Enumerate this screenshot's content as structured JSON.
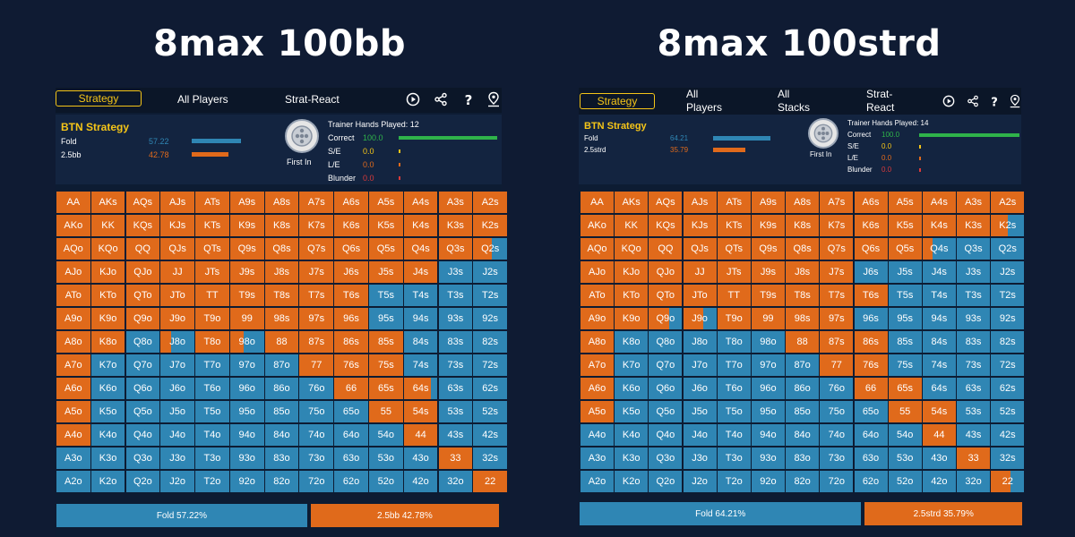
{
  "titles": [
    "8max 100bb",
    "8max 100strd"
  ],
  "colors": {
    "raise": "#e06a1b",
    "fold": "#2f86b4",
    "accent": "#f5c518",
    "correct": "#2fb34a"
  },
  "hands": [
    [
      "AA",
      "AKs",
      "AQs",
      "AJs",
      "ATs",
      "A9s",
      "A8s",
      "A7s",
      "A6s",
      "A5s",
      "A4s",
      "A3s",
      "A2s"
    ],
    [
      "AKo",
      "KK",
      "KQs",
      "KJs",
      "KTs",
      "K9s",
      "K8s",
      "K7s",
      "K6s",
      "K5s",
      "K4s",
      "K3s",
      "K2s"
    ],
    [
      "AQo",
      "KQo",
      "QQ",
      "QJs",
      "QTs",
      "Q9s",
      "Q8s",
      "Q7s",
      "Q6s",
      "Q5s",
      "Q4s",
      "Q3s",
      "Q2s"
    ],
    [
      "AJo",
      "KJo",
      "QJo",
      "JJ",
      "JTs",
      "J9s",
      "J8s",
      "J7s",
      "J6s",
      "J5s",
      "J4s",
      "J3s",
      "J2s"
    ],
    [
      "ATo",
      "KTo",
      "QTo",
      "JTo",
      "TT",
      "T9s",
      "T8s",
      "T7s",
      "T6s",
      "T5s",
      "T4s",
      "T3s",
      "T2s"
    ],
    [
      "A9o",
      "K9o",
      "Q9o",
      "J9o",
      "T9o",
      "99",
      "98s",
      "97s",
      "96s",
      "95s",
      "94s",
      "93s",
      "92s"
    ],
    [
      "A8o",
      "K8o",
      "Q8o",
      "J8o",
      "T8o",
      "98o",
      "88",
      "87s",
      "86s",
      "85s",
      "84s",
      "83s",
      "82s"
    ],
    [
      "A7o",
      "K7o",
      "Q7o",
      "J7o",
      "T7o",
      "97o",
      "87o",
      "77",
      "76s",
      "75s",
      "74s",
      "73s",
      "72s"
    ],
    [
      "A6o",
      "K6o",
      "Q6o",
      "J6o",
      "T6o",
      "96o",
      "86o",
      "76o",
      "66",
      "65s",
      "64s",
      "63s",
      "62s"
    ],
    [
      "A5o",
      "K5o",
      "Q5o",
      "J5o",
      "T5o",
      "95o",
      "85o",
      "75o",
      "65o",
      "55",
      "54s",
      "53s",
      "52s"
    ],
    [
      "A4o",
      "K4o",
      "Q4o",
      "J4o",
      "T4o",
      "94o",
      "84o",
      "74o",
      "64o",
      "54o",
      "44",
      "43s",
      "42s"
    ],
    [
      "A3o",
      "K3o",
      "Q3o",
      "J3o",
      "T3o",
      "93o",
      "83o",
      "73o",
      "63o",
      "53o",
      "43o",
      "33",
      "32s"
    ],
    [
      "A2o",
      "K2o",
      "Q2o",
      "J2o",
      "T2o",
      "92o",
      "82o",
      "72o",
      "62o",
      "52o",
      "42o",
      "32o",
      "22"
    ]
  ],
  "panels": [
    {
      "tabs": {
        "strategy": "Strategy",
        "tab2": "All Players",
        "tab3": "Strat-React"
      },
      "position_title": "BTN Strategy",
      "actions": [
        {
          "label": "Fold",
          "value": "57.22",
          "freq": 57.22
        },
        {
          "label": "2.5bb",
          "value": "42.78",
          "freq": 42.78
        }
      ],
      "first_in": "First In",
      "trainer": {
        "title": "Trainer Hands Played: 12",
        "rows": [
          {
            "label": "Correct",
            "value": "100.0"
          },
          {
            "label": "S/E",
            "value": "0.0"
          },
          {
            "label": "L/E",
            "value": "0.0"
          },
          {
            "label": "Blunder",
            "value": "0.0"
          }
        ]
      },
      "raise_fraction": [
        [
          1,
          1,
          1,
          1,
          1,
          1,
          1,
          1,
          1,
          1,
          1,
          1,
          1
        ],
        [
          1,
          1,
          1,
          1,
          1,
          1,
          1,
          1,
          1,
          1,
          1,
          1,
          1
        ],
        [
          1,
          1,
          1,
          1,
          1,
          1,
          1,
          1,
          1,
          1,
          1,
          1,
          0.55
        ],
        [
          1,
          1,
          1,
          1,
          1,
          1,
          1,
          1,
          1,
          1,
          1,
          0,
          0
        ],
        [
          1,
          1,
          1,
          1,
          1,
          1,
          1,
          1,
          1,
          0,
          0,
          0,
          0
        ],
        [
          1,
          1,
          1,
          1,
          1,
          1,
          1,
          1,
          1,
          0,
          0,
          0,
          0
        ],
        [
          1,
          1,
          0,
          0.3,
          1,
          0.4,
          1,
          1,
          1,
          1,
          0,
          0,
          0
        ],
        [
          1,
          0,
          0,
          0,
          0,
          0,
          0,
          1,
          1,
          1,
          0,
          0,
          0
        ],
        [
          1,
          0,
          0,
          0,
          0,
          0,
          0,
          0,
          1,
          1,
          0.8,
          0,
          0
        ],
        [
          1,
          0,
          0,
          0,
          0,
          0,
          0,
          0,
          0,
          1,
          1,
          0,
          0
        ],
        [
          1,
          0,
          0,
          0,
          0,
          0,
          0,
          0,
          0,
          0,
          1,
          0,
          0
        ],
        [
          0,
          0,
          0,
          0,
          0,
          0,
          0,
          0,
          0,
          0,
          0,
          1,
          0
        ],
        [
          0,
          0,
          0,
          0,
          0,
          0,
          0,
          0,
          0,
          0,
          0,
          0,
          1
        ]
      ],
      "summary": {
        "fold": "Fold 57.22%",
        "raise": "2.5bb 42.78%",
        "fold_freq": 57.22
      }
    },
    {
      "tabs": {
        "strategy": "Strategy",
        "tab2": "All Players",
        "tab3": "All Stacks",
        "tab4": "Strat-React"
      },
      "position_title": "BTN Strategy",
      "actions": [
        {
          "label": "Fold",
          "value": "64.21",
          "freq": 64.21
        },
        {
          "label": "2.5strd",
          "value": "35.79",
          "freq": 35.79
        }
      ],
      "first_in": "First In",
      "trainer": {
        "title": "Trainer Hands Played: 14",
        "rows": [
          {
            "label": "Correct",
            "value": "100.0"
          },
          {
            "label": "S/E",
            "value": "0.0"
          },
          {
            "label": "L/E",
            "value": "0.0"
          },
          {
            "label": "Blunder",
            "value": "0.0"
          }
        ]
      },
      "raise_fraction": [
        [
          1,
          1,
          1,
          1,
          1,
          1,
          1,
          1,
          1,
          1,
          1,
          1,
          1
        ],
        [
          1,
          1,
          1,
          1,
          1,
          1,
          1,
          1,
          1,
          1,
          1,
          1,
          0.5
        ],
        [
          1,
          1,
          1,
          1,
          1,
          1,
          1,
          1,
          1,
          1,
          0.3,
          0,
          0
        ],
        [
          1,
          1,
          1,
          1,
          1,
          1,
          1,
          1,
          0,
          0,
          0,
          0,
          0
        ],
        [
          1,
          1,
          1,
          1,
          1,
          1,
          1,
          1,
          1,
          0,
          0,
          0,
          0
        ],
        [
          1,
          1,
          0.6,
          0.6,
          1,
          1,
          1,
          1,
          0,
          0,
          0,
          0,
          0
        ],
        [
          1,
          0,
          0,
          0,
          0,
          0,
          1,
          1,
          1,
          0,
          0,
          0,
          0
        ],
        [
          1,
          0,
          0,
          0,
          0,
          0,
          0,
          1,
          1,
          0,
          0,
          0,
          0
        ],
        [
          1,
          0,
          0,
          0,
          0,
          0,
          0,
          0,
          1,
          1,
          0,
          0,
          0
        ],
        [
          1,
          0,
          0,
          0,
          0,
          0,
          0,
          0,
          0,
          1,
          1,
          0,
          0
        ],
        [
          0,
          0,
          0,
          0,
          0,
          0,
          0,
          0,
          0,
          0,
          1,
          0,
          0
        ],
        [
          0,
          0,
          0,
          0,
          0,
          0,
          0,
          0,
          0,
          0,
          0,
          1,
          0
        ],
        [
          0,
          0,
          0,
          0,
          0,
          0,
          0,
          0,
          0,
          0,
          0,
          0,
          0.6
        ]
      ],
      "summary": {
        "fold": "Fold 64.21%",
        "raise": "2.5strd 35.79%",
        "fold_freq": 64.21
      }
    }
  ]
}
